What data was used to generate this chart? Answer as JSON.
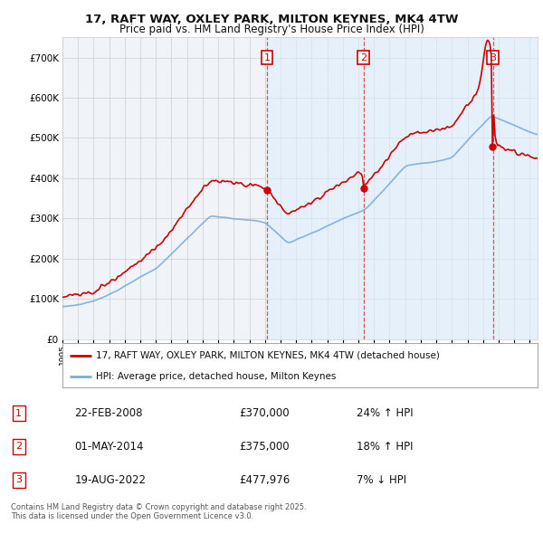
{
  "title1": "17, RAFT WAY, OXLEY PARK, MILTON KEYNES, MK4 4TW",
  "title2": "Price paid vs. HM Land Registry's House Price Index (HPI)",
  "bg_color": "#ffffff",
  "plot_bg_color": "#f8f8ff",
  "grid_color": "#cccccc",
  "sale1_date_num": 2008.12,
  "sale2_date_num": 2014.33,
  "sale3_date_num": 2022.63,
  "sale1_price": 370000,
  "sale2_price": 375000,
  "sale3_price": 477976,
  "sale1_label": "1",
  "sale2_label": "2",
  "sale3_label": "3",
  "sale1_info": "22-FEB-2008",
  "sale2_info": "01-MAY-2014",
  "sale3_info": "19-AUG-2022",
  "sale1_pct": "24% ↑ HPI",
  "sale2_pct": "18% ↑ HPI",
  "sale3_pct": "7% ↓ HPI",
  "sale1_price_str": "£370,000",
  "sale2_price_str": "£375,000",
  "sale3_price_str": "£477,976",
  "red_color": "#cc0000",
  "blue_color": "#7aaddc",
  "shade_color": "#ddeeff",
  "legend1": "17, RAFT WAY, OXLEY PARK, MILTON KEYNES, MK4 4TW (detached house)",
  "legend2": "HPI: Average price, detached house, Milton Keynes",
  "footnote": "Contains HM Land Registry data © Crown copyright and database right 2025.\nThis data is licensed under the Open Government Licence v3.0.",
  "xmin": 1995,
  "xmax": 2025.5,
  "ymin": 0,
  "ymax": 750000
}
